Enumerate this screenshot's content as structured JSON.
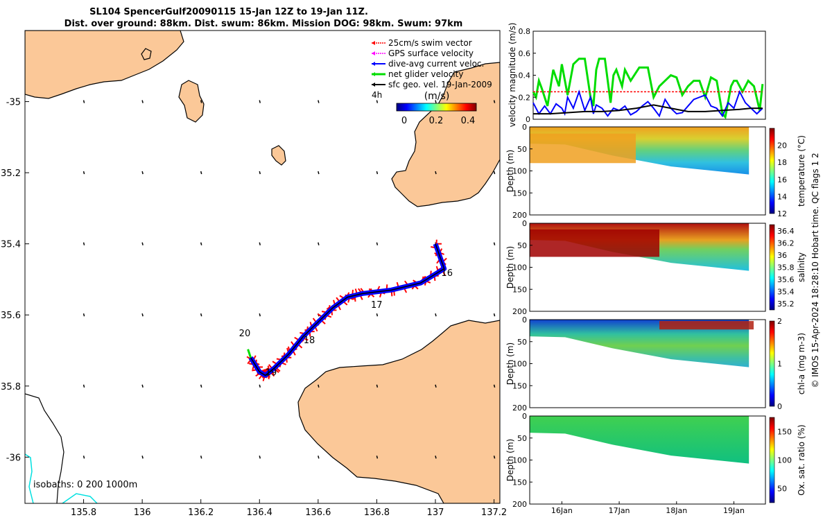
{
  "title": {
    "line1": "SL104 SpencerGulf20090115 15-Jan 12Z to 19-Jan 11Z.",
    "line2": "Dist. over ground: 88km. Dist. swum: 86km. Mission DOG: 98km. Swum: 97km"
  },
  "colors": {
    "land": "#fbc898",
    "swim": "#ff0000",
    "gps": "#ff00ff",
    "current": "#0000ff",
    "net": "#00dd00",
    "geo": "#000000",
    "isobath_200": "#00e0e0"
  },
  "chart_data": [
    {
      "type": "scatter",
      "name": "glider-track-map",
      "xlim": [
        135.6,
        137.22
      ],
      "ylim": [
        -36.13,
        -34.8
      ],
      "xticks": [
        "135.8",
        "136",
        "136.2",
        "136.4",
        "136.6",
        "136.8",
        "137",
        "137.2"
      ],
      "yticks": [
        "-35",
        "35.2",
        "35.4",
        "35.6",
        "35.8",
        "-36"
      ],
      "legend": {
        "placement": "top-right",
        "entries": [
          "25cm/s swim vector",
          "GPS surface velocity",
          "dive-avg current veloc.",
          "net glider velocity",
          "sfc geo. vel. 19-Jan-2009"
        ]
      },
      "scale_label": "4h",
      "colorbar": {
        "label": "(m/s)",
        "ticks": [
          "0",
          "0.2",
          "0.4"
        ],
        "range": [
          0,
          0.5
        ]
      },
      "day_labels": [
        "16",
        "17",
        "18",
        "19",
        "20"
      ],
      "isobaths_text": "isobaths: 0   200  1000m",
      "track": [
        [
          137.0,
          -35.4
        ],
        [
          137.03,
          -35.47
        ],
        [
          136.95,
          -35.51
        ],
        [
          136.85,
          -35.53
        ],
        [
          136.75,
          -35.54
        ],
        [
          136.7,
          -35.55
        ],
        [
          136.65,
          -35.58
        ],
        [
          136.6,
          -35.62
        ],
        [
          136.55,
          -35.66
        ],
        [
          136.5,
          -35.71
        ],
        [
          136.45,
          -35.75
        ],
        [
          136.42,
          -35.77
        ],
        [
          136.4,
          -35.76
        ],
        [
          136.37,
          -35.72
        ]
      ]
    },
    {
      "type": "line",
      "name": "velocity-magnitude",
      "ylabel": "velocity magnitude (m/s)",
      "ylim": [
        0,
        0.8
      ],
      "yticks": [
        "0",
        "0.2",
        "0.4",
        "0.6",
        "0.8"
      ],
      "series": [
        {
          "name": "net glider velocity",
          "color": "#00dd00",
          "t": [
            15.5,
            15.55,
            15.6,
            15.65,
            15.75,
            15.85,
            15.95,
            16.0,
            16.1,
            16.2,
            16.3,
            16.4,
            16.5,
            16.55,
            16.6,
            16.65,
            16.75,
            16.85,
            16.9,
            16.95,
            17.05,
            17.1,
            17.2,
            17.35,
            17.5,
            17.6,
            17.7,
            17.8,
            17.9,
            18.0,
            18.1,
            18.2,
            18.3,
            18.4,
            18.5,
            18.6,
            18.7,
            18.8,
            18.85,
            18.95,
            19.0,
            19.05,
            19.15,
            19.25,
            19.35,
            19.45,
            19.5
          ],
          "v": [
            0.25,
            0.2,
            0.35,
            0.28,
            0.12,
            0.45,
            0.3,
            0.5,
            0.22,
            0.5,
            0.55,
            0.55,
            0.2,
            0.12,
            0.45,
            0.55,
            0.55,
            0.15,
            0.4,
            0.45,
            0.3,
            0.45,
            0.35,
            0.47,
            0.47,
            0.2,
            0.3,
            0.35,
            0.4,
            0.38,
            0.22,
            0.3,
            0.35,
            0.35,
            0.2,
            0.38,
            0.35,
            0.05,
            0.02,
            0.3,
            0.35,
            0.35,
            0.25,
            0.35,
            0.3,
            0.08,
            0.32
          ]
        },
        {
          "name": "25cm/s swim vector",
          "color": "#ff0000",
          "t": [
            15.5,
            19.5
          ],
          "v": [
            0.25,
            0.25
          ]
        },
        {
          "name": "dive-avg current veloc.",
          "color": "#0000ff",
          "t": [
            15.5,
            15.6,
            15.7,
            15.8,
            15.9,
            16.0,
            16.05,
            16.1,
            16.2,
            16.3,
            16.4,
            16.5,
            16.55,
            16.6,
            16.7,
            16.8,
            16.9,
            17.0,
            17.1,
            17.2,
            17.3,
            17.4,
            17.5,
            17.6,
            17.7,
            17.8,
            17.9,
            18.0,
            18.1,
            18.2,
            18.3,
            18.4,
            18.5,
            18.6,
            18.7,
            18.8,
            18.9,
            19.0,
            19.1,
            19.2,
            19.3,
            19.4,
            19.5
          ],
          "v": [
            0.15,
            0.05,
            0.12,
            0.05,
            0.14,
            0.1,
            0.05,
            0.2,
            0.1,
            0.25,
            0.08,
            0.2,
            0.05,
            0.13,
            0.1,
            0.03,
            0.1,
            0.08,
            0.12,
            0.04,
            0.07,
            0.12,
            0.16,
            0.1,
            0.03,
            0.18,
            0.1,
            0.05,
            0.06,
            0.12,
            0.18,
            0.2,
            0.22,
            0.12,
            0.1,
            0.03,
            0.15,
            0.1,
            0.25,
            0.15,
            0.1,
            0.05,
            0.1
          ]
        },
        {
          "name": "sfc geo. vel.",
          "color": "#000000",
          "t": [
            15.5,
            15.8,
            16.1,
            16.4,
            16.7,
            17.0,
            17.3,
            17.6,
            17.9,
            18.2,
            18.5,
            18.8,
            19.1,
            19.3,
            19.5
          ],
          "v": [
            0.05,
            0.05,
            0.06,
            0.07,
            0.07,
            0.08,
            0.1,
            0.13,
            0.1,
            0.07,
            0.07,
            0.08,
            0.09,
            0.1,
            0.1
          ]
        }
      ]
    },
    {
      "type": "heatmap",
      "name": "temperature-section",
      "ylabel": "Depth (m)",
      "clabel": "temperature (°C)",
      "ylim": [
        200,
        0
      ],
      "yticks": [
        "0",
        "50",
        "100",
        "150",
        "200"
      ],
      "cticks": [
        "12",
        "14",
        "16",
        "18",
        "20"
      ],
      "crange": [
        12,
        22
      ]
    },
    {
      "type": "heatmap",
      "name": "salinity-section",
      "ylabel": "Depth (m)",
      "clabel": "salinity",
      "ylim": [
        200,
        0
      ],
      "yticks": [
        "0",
        "50",
        "100",
        "150",
        "200"
      ],
      "cticks": [
        "35.2",
        "35.4",
        "35.6",
        "35.8",
        "36",
        "36.2",
        "36.4"
      ],
      "crange": [
        35.1,
        36.5
      ]
    },
    {
      "type": "heatmap",
      "name": "chla-section",
      "ylabel": "Depth (m)",
      "clabel": "chl-a (mg m-3)",
      "ylim": [
        200,
        0
      ],
      "yticks": [
        "0",
        "50",
        "100",
        "150",
        "200"
      ],
      "cticks": [
        "0",
        "1",
        "2"
      ],
      "crange": [
        0,
        2
      ]
    },
    {
      "type": "heatmap",
      "name": "oxygen-section",
      "ylabel": "Depth (m)",
      "clabel": "Ox. sat. ratio (%)",
      "ylim": [
        200,
        0
      ],
      "yticks": [
        "0",
        "50",
        "100",
        "150",
        "200"
      ],
      "cticks": [
        "50",
        "100",
        "150"
      ],
      "crange": [
        25,
        175
      ],
      "xticks": [
        "16Jan",
        "17Jan",
        "18Jan",
        "19Jan"
      ],
      "xlim": [
        15.5,
        19.55
      ]
    }
  ],
  "side_note": "© IMOS 15-Apr-2024 18:28:10 Hobart time. QC flags 1  2"
}
